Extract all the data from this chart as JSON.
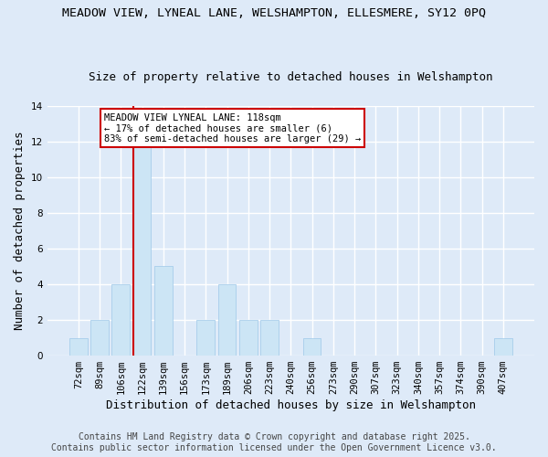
{
  "title1": "MEADOW VIEW, LYNEAL LANE, WELSHAMPTON, ELLESMERE, SY12 0PQ",
  "title2": "Size of property relative to detached houses in Welshampton",
  "xlabel": "Distribution of detached houses by size in Welshampton",
  "ylabel": "Number of detached properties",
  "categories": [
    "72sqm",
    "89sqm",
    "106sqm",
    "122sqm",
    "139sqm",
    "156sqm",
    "173sqm",
    "189sqm",
    "206sqm",
    "223sqm",
    "240sqm",
    "256sqm",
    "273sqm",
    "290sqm",
    "307sqm",
    "323sqm",
    "340sqm",
    "357sqm",
    "374sqm",
    "390sqm",
    "407sqm"
  ],
  "values": [
    1,
    2,
    4,
    12,
    5,
    0,
    2,
    4,
    2,
    2,
    0,
    1,
    0,
    0,
    0,
    0,
    0,
    0,
    0,
    0,
    1
  ],
  "bar_color": "#cce5f5",
  "bar_edgecolor": "#9ec8e8",
  "red_line_index": 3,
  "annotation_text": "MEADOW VIEW LYNEAL LANE: 118sqm\n← 17% of detached houses are smaller (6)\n83% of semi-detached houses are larger (29) →",
  "annotation_box_color": "#ffffff",
  "annotation_box_edgecolor": "#cc0000",
  "red_line_color": "#cc0000",
  "ylim": [
    0,
    14
  ],
  "yticks": [
    0,
    2,
    4,
    6,
    8,
    10,
    12,
    14
  ],
  "footer1": "Contains HM Land Registry data © Crown copyright and database right 2025.",
  "footer2": "Contains public sector information licensed under the Open Government Licence v3.0.",
  "bg_color": "#deeaf8",
  "plot_bg_color": "#deeaf8",
  "grid_color": "#ffffff",
  "title1_fontsize": 9.5,
  "title2_fontsize": 9,
  "xlabel_fontsize": 9,
  "ylabel_fontsize": 9,
  "tick_fontsize": 7.5,
  "annotation_fontsize": 7.5,
  "footer_fontsize": 7
}
